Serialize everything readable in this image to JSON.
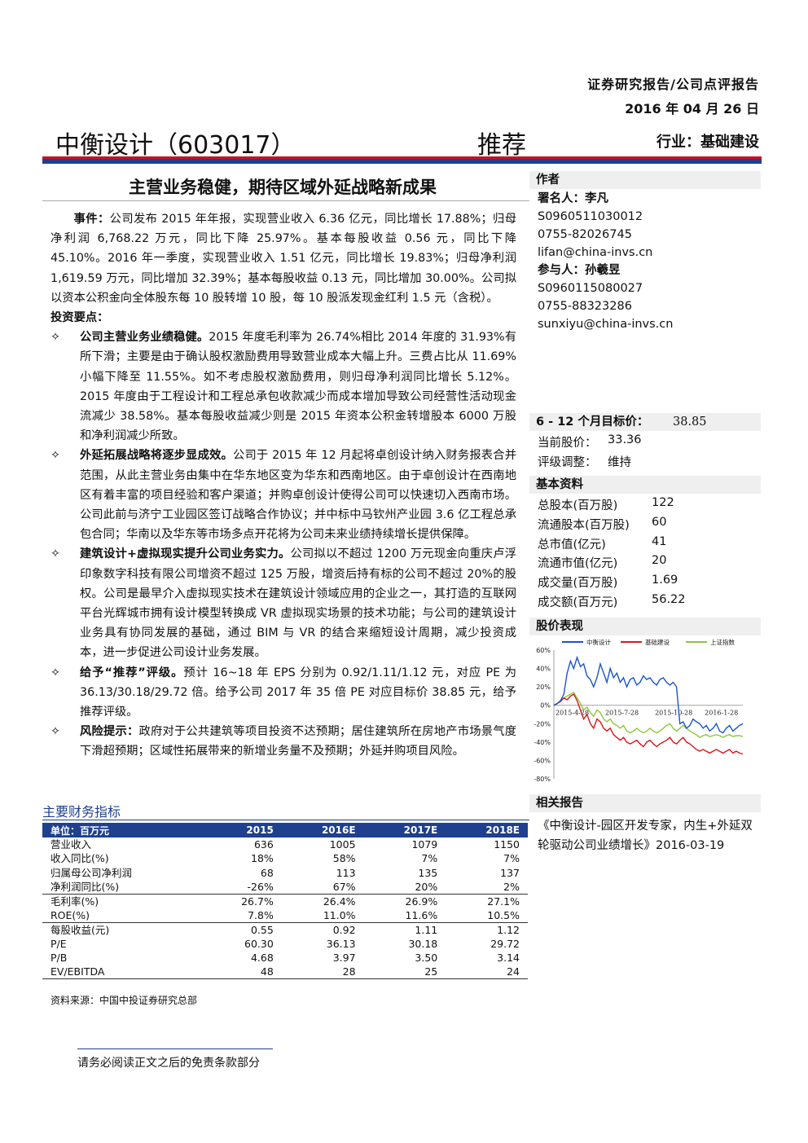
{
  "header": {
    "report_type": "证券研究报告/公司点评报告",
    "date": "2016 年 04 月 26 日",
    "company": "中衡设计（603017）",
    "rating": "推荐",
    "industry": "行业：基础建设"
  },
  "headline": "主营业务稳健，期待区域外延战略新成果",
  "body": {
    "event_label": "事件：",
    "event_text": "公司发布 2015 年年报，实现营业收入 6.36 亿元，同比增长 17.88%；归母净利润 6,768.22 万元，同比下降 25.97%。基本每股收益 0.56 元，同比下降 45.10%。2016 年一季度，实现营业收入 1.51 亿元，同比增长 19.83%；归母净利润 1,619.59 万元，同比增加 32.39%；基本每股收益 0.13 元，同比增加 30.00%。公司拟以资本公积金向全体股东每 10 股转增 10 股，每 10 股派发现金红利 1.5 元（含税）。",
    "points_label": "投资要点：",
    "bullet_mark": "✧",
    "points": [
      {
        "bold": "公司主营业务业绩稳健。",
        "text": "2015 年度毛利率为 26.74%相比 2014 年度的 31.93%有所下滑；主要是由于确认股权激励费用导致营业成本大幅上升。三费占比从 11.69%小幅下降至 11.55%。如不考虑股权激励费用，则归母净利润同比增长 5.12%。2015 年度由于工程设计和工程总承包收款减少而成本增加导致公司经营性活动现金流减少 38.58%。基本每股收益减少则是 2015 年资本公积金转增股本 6000 万股和净利润减少所致。"
      },
      {
        "bold": "外延拓展战略将逐步显成效。",
        "text": "公司于 2015 年 12 月起将卓创设计纳入财务报表合并范围，从此主营业务由集中在华东地区变为华东和西南地区。由于卓创设计在西南地区有着丰富的项目经验和客户渠道；并购卓创设计使得公司可以快速切入西南市场。公司此前与济宁工业园区签订战略合作协议；并中标中马钦州产业园 3.6 亿工程总承包合同；华南以及华东等市场多点开花将为公司未来业绩持续增长提供保障。"
      },
      {
        "bold": "建筑设计+虚拟现实提升公司业务实力。",
        "text": "公司拟以不超过 1200 万元现金向重庆卢浮印象数字科技有限公司增资不超过 125 万股，增资后持有标的公司不超过 20%的股权。公司是最早介入虚拟现实技术在建筑设计领域应用的企业之一，其打造的互联网平台光辉城市拥有设计模型转换成 VR 虚拟现实场景的技术功能；与公司的建筑设计业务具有协同发展的基础，通过 BIM 与 VR 的结合来缩短设计周期，减少投资成本，进一步促进公司设计业务发展。"
      },
      {
        "bold": "给予“推荐”评级。",
        "text": "预计 16~18 年 EPS 分别为 0.92/1.11/1.12 元，对应 PE 为 36.13/30.18/29.72 倍。给予公司 2017 年 35 倍 PE 对应目标价 38.85 元，给予推荐评级。"
      }
    ],
    "risk_bold": "风险提示：",
    "risk_text": "政府对于公共建筑等项目投资不达预期；居住建筑所在房地产市场景气度下滑超预期；区域性拓展带来的新增业务量不及预期；外延并购项目风险。"
  },
  "financials": {
    "title": "主要财务指标",
    "headers": [
      "单位：百万元",
      "2015",
      "2016E",
      "2017E",
      "2018E"
    ],
    "groups": [
      [
        [
          "营业收入",
          "636",
          "1005",
          "1079",
          "1150"
        ],
        [
          "收入同比(%)",
          "18%",
          "58%",
          "7%",
          "7%"
        ],
        [
          "归属母公司净利润",
          "68",
          "113",
          "135",
          "137"
        ],
        [
          "净利润同比(%)",
          "-26%",
          "67%",
          "20%",
          "2%"
        ]
      ],
      [
        [
          "毛利率(%)",
          "26.7%",
          "26.4%",
          "26.9%",
          "27.1%"
        ],
        [
          "ROE(%)",
          "7.8%",
          "11.0%",
          "11.6%",
          "10.5%"
        ]
      ],
      [
        [
          "每股收益(元)",
          "0.55",
          "0.92",
          "1.11",
          "1.12"
        ],
        [
          "P/E",
          "60.30",
          "36.13",
          "30.18",
          "29.72"
        ],
        [
          "P/B",
          "4.68",
          "3.97",
          "3.50",
          "3.14"
        ],
        [
          "EV/EBITDA",
          "48",
          "28",
          "25",
          "24"
        ]
      ]
    ],
    "source": "资料来源：中国中投证券研究总部"
  },
  "sidebar": {
    "author_label": "作者",
    "author_name": "署名人：李凡",
    "author_lines": [
      "S0960511030012",
      "0755-82026745",
      "lifan@china-invs.cn"
    ],
    "participant_name": "参与人：孙羲昱",
    "participant_lines": [
      "S0960115080027",
      "0755-88323286",
      "sunxiyu@china-invs.cn"
    ],
    "target_label": "6 - 12 个月目标价：",
    "target_value": "38.85",
    "price_label": "当前股价：",
    "price_value": "33.36",
    "rating_label": "评级调整：",
    "rating_value": "维持",
    "basic_label": "基本资料",
    "basic": [
      {
        "k": "总股本(百万股)",
        "v": "122"
      },
      {
        "k": "流通股本(百万股)",
        "v": "60"
      },
      {
        "k": "总市值(亿元)",
        "v": "41"
      },
      {
        "k": "流通市值(亿元)",
        "v": "20"
      },
      {
        "k": "成交量(百万股)",
        "v": "1.69"
      },
      {
        "k": "成交额(百万元)",
        "v": "56.22"
      }
    ],
    "chart_label": "股价表现",
    "related_label": "相关报告",
    "related_text": "《中衡设计-园区开发专家，内生+外延双轮驱动公司业绩增长》2016-03-19"
  },
  "footer": "请务必阅读正文之后的免责条款部分",
  "chart_data": {
    "type": "line",
    "y_ticks": [
      "60%",
      "40%",
      "20%",
      "0%",
      "-20%",
      "-40%",
      "-60%",
      "-80%"
    ],
    "ylim": [
      -80,
      60
    ],
    "x_ticks": [
      "2015-4-28",
      "2015-7-28",
      "2015-10-28",
      "2016-1-28"
    ],
    "series": [
      {
        "name": "中衡设计",
        "color": "#1a55c8",
        "values": [
          0,
          2,
          5,
          12,
          35,
          48,
          40,
          52,
          42,
          45,
          32,
          28,
          20,
          30,
          45,
          35,
          25,
          40,
          30,
          35,
          25,
          30,
          20,
          28,
          30,
          22,
          25,
          32,
          28,
          30,
          25,
          22,
          28,
          30,
          25,
          22,
          25,
          20,
          -20,
          -18,
          -25,
          -22,
          -15,
          -18,
          -20,
          -25,
          -22,
          -28,
          -25,
          -20,
          -28,
          -30,
          -25,
          -22,
          -28,
          -25,
          -22,
          -20
        ]
      },
      {
        "name": "基础建设",
        "color": "#d7191c",
        "values": [
          0,
          2,
          4,
          8,
          6,
          10,
          12,
          5,
          -5,
          -15,
          -10,
          -20,
          -25,
          -15,
          -18,
          -25,
          -28,
          -25,
          -32,
          -35,
          -38,
          -35,
          -40,
          -42,
          -40,
          -38,
          -42,
          -45,
          -40,
          -38,
          -42,
          -45,
          -42,
          -40,
          -38,
          -35,
          -40,
          -42,
          -38,
          -35,
          -40,
          -42,
          -45,
          -48,
          -50,
          -48,
          -50,
          -52,
          -50,
          -48,
          -50,
          -52,
          -50,
          -48,
          -52,
          -50,
          -52,
          -53
        ]
      },
      {
        "name": "上证指数",
        "color": "#8dc63f",
        "values": [
          0,
          2,
          5,
          8,
          10,
          12,
          14,
          8,
          2,
          -5,
          -2,
          -8,
          -12,
          -5,
          -8,
          -15,
          -18,
          -15,
          -20,
          -22,
          -25,
          -22,
          -28,
          -30,
          -28,
          -25,
          -28,
          -30,
          -28,
          -25,
          -28,
          -30,
          -28,
          -25,
          -22,
          -20,
          -25,
          -28,
          -25,
          -22,
          -25,
          -28,
          -30,
          -32,
          -35,
          -33,
          -32,
          -34,
          -33,
          -32,
          -33,
          -35,
          -33,
          -32,
          -34,
          -33,
          -33,
          -34
        ]
      }
    ]
  }
}
